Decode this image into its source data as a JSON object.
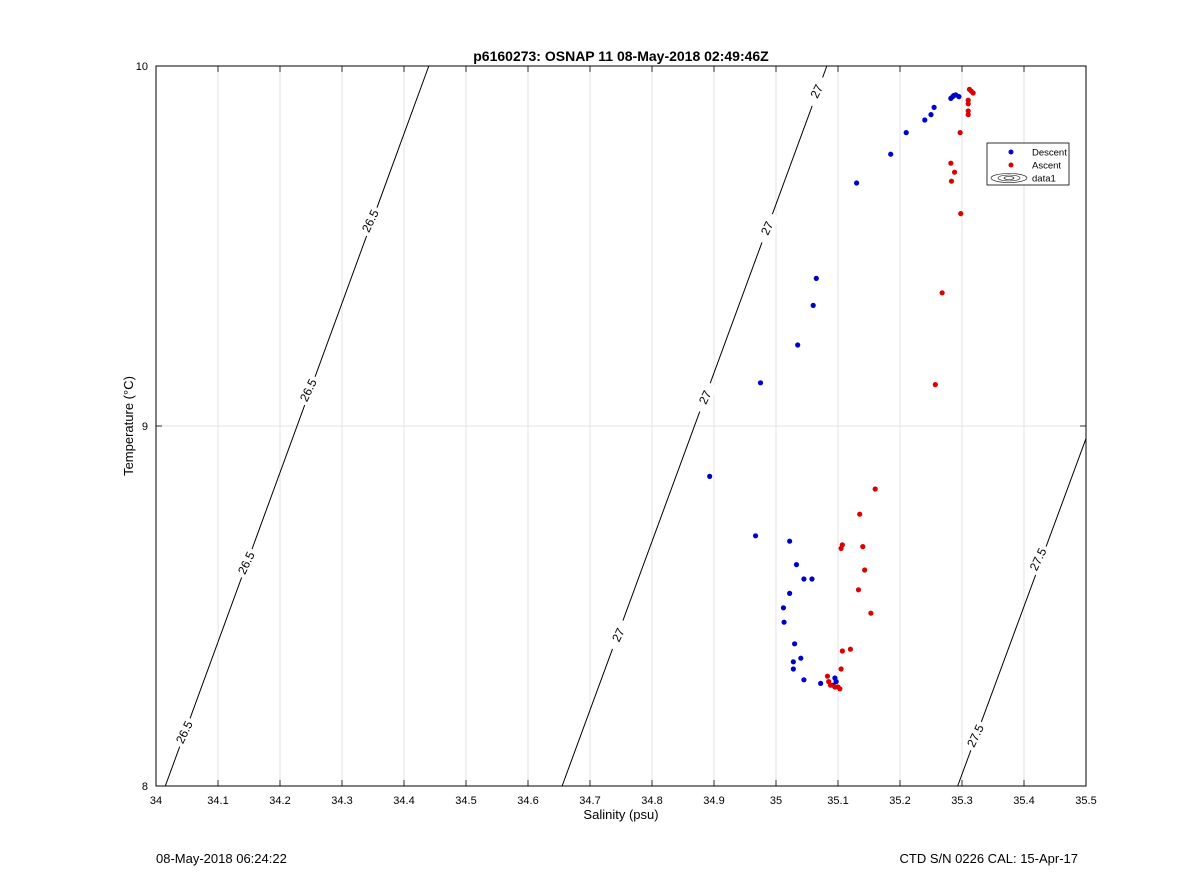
{
  "footer": {
    "left": "08-May-2018 06:24:22",
    "right": "CTD S/N 0226  CAL: 15-Apr-17"
  },
  "chart_data": {
    "type": "scatter",
    "title": "p6160273: OSNAP 11 08-May-2018 02:49:46Z",
    "xlabel": "Salinity (psu)",
    "ylabel": "Temperature (°C)",
    "xlim": [
      34,
      35.5
    ],
    "ylim": [
      8,
      10
    ],
    "xticks": [
      "34",
      "34.1",
      "34.2",
      "34.3",
      "34.4",
      "34.5",
      "34.6",
      "34.7",
      "34.8",
      "34.9",
      "35",
      "35.1",
      "35.2",
      "35.3",
      "35.4",
      "35.5"
    ],
    "yticks": [
      "8",
      "9",
      "10"
    ],
    "grid": true,
    "legend_position": "top-right",
    "legend": [
      "Descent",
      "Ascent",
      "data1"
    ],
    "colors": {
      "Descent": "#0000cc",
      "Ascent": "#dd0000",
      "contour": "#000000"
    },
    "series": [
      {
        "name": "Descent",
        "points": [
          [
            35.285,
            9.915
          ],
          [
            35.29,
            9.92
          ],
          [
            35.282,
            9.91
          ],
          [
            35.295,
            9.915
          ],
          [
            35.287,
            9.918
          ],
          [
            35.255,
            9.885
          ],
          [
            35.25,
            9.865
          ],
          [
            35.24,
            9.85
          ],
          [
            35.21,
            9.815
          ],
          [
            35.185,
            9.755
          ],
          [
            35.13,
            9.675
          ],
          [
            35.065,
            9.41
          ],
          [
            35.06,
            9.335
          ],
          [
            35.035,
            9.225
          ],
          [
            34.975,
            9.12
          ],
          [
            34.893,
            8.86
          ],
          [
            34.967,
            8.695
          ],
          [
            35.022,
            8.68
          ],
          [
            35.033,
            8.615
          ],
          [
            35.045,
            8.575
          ],
          [
            35.058,
            8.575
          ],
          [
            35.022,
            8.535
          ],
          [
            35.012,
            8.495
          ],
          [
            35.013,
            8.455
          ],
          [
            35.03,
            8.395
          ],
          [
            35.04,
            8.355
          ],
          [
            35.028,
            8.345
          ],
          [
            35.028,
            8.325
          ],
          [
            35.045,
            8.295
          ],
          [
            35.072,
            8.285
          ],
          [
            35.095,
            8.3
          ],
          [
            35.097,
            8.29
          ],
          [
            35.092,
            8.28
          ]
        ]
      },
      {
        "name": "Ascent",
        "points": [
          [
            35.312,
            9.935
          ],
          [
            35.315,
            9.93
          ],
          [
            35.318,
            9.925
          ],
          [
            35.31,
            9.905
          ],
          [
            35.31,
            9.895
          ],
          [
            35.31,
            9.875
          ],
          [
            35.31,
            9.865
          ],
          [
            35.297,
            9.815
          ],
          [
            35.282,
            9.73
          ],
          [
            35.288,
            9.705
          ],
          [
            35.283,
            9.68
          ],
          [
            35.298,
            9.59
          ],
          [
            35.268,
            9.37
          ],
          [
            35.257,
            9.115
          ],
          [
            35.16,
            8.825
          ],
          [
            35.135,
            8.755
          ],
          [
            35.107,
            8.67
          ],
          [
            35.105,
            8.66
          ],
          [
            35.14,
            8.665
          ],
          [
            35.143,
            8.6
          ],
          [
            35.133,
            8.545
          ],
          [
            35.153,
            8.48
          ],
          [
            35.12,
            8.38
          ],
          [
            35.107,
            8.375
          ],
          [
            35.105,
            8.325
          ],
          [
            35.083,
            8.305
          ],
          [
            35.085,
            8.29
          ],
          [
            35.088,
            8.28
          ],
          [
            35.095,
            8.275
          ],
          [
            35.1,
            8.275
          ],
          [
            35.103,
            8.27
          ]
        ]
      }
    ],
    "contours": [
      {
        "label": "26.5",
        "from": [
          34.015,
          8
        ],
        "to": [
          34.44,
          10
        ]
      },
      {
        "label": "27",
        "from": [
          34.655,
          8
        ],
        "to": [
          35.082,
          10
        ]
      },
      {
        "label": "27.5",
        "from": [
          35.293,
          8
        ],
        "to": [
          35.5,
          8.965
        ]
      }
    ],
    "contour_labels": [
      {
        "text": "26.5",
        "at": [
          34.045,
          8.15
        ]
      },
      {
        "text": "26.5",
        "at": [
          34.145,
          8.62
        ]
      },
      {
        "text": "26.5",
        "at": [
          34.245,
          9.1
        ]
      },
      {
        "text": "26.5",
        "at": [
          34.345,
          9.57
        ]
      },
      {
        "text": "27",
        "at": [
          34.745,
          8.42
        ]
      },
      {
        "text": "27",
        "at": [
          34.885,
          9.08
        ]
      },
      {
        "text": "27",
        "at": [
          34.985,
          9.55
        ]
      },
      {
        "text": "27",
        "at": [
          35.065,
          9.93
        ]
      },
      {
        "text": "27.5",
        "at": [
          35.321,
          8.14
        ]
      },
      {
        "text": "27.5",
        "at": [
          35.422,
          8.63
        ]
      }
    ]
  }
}
